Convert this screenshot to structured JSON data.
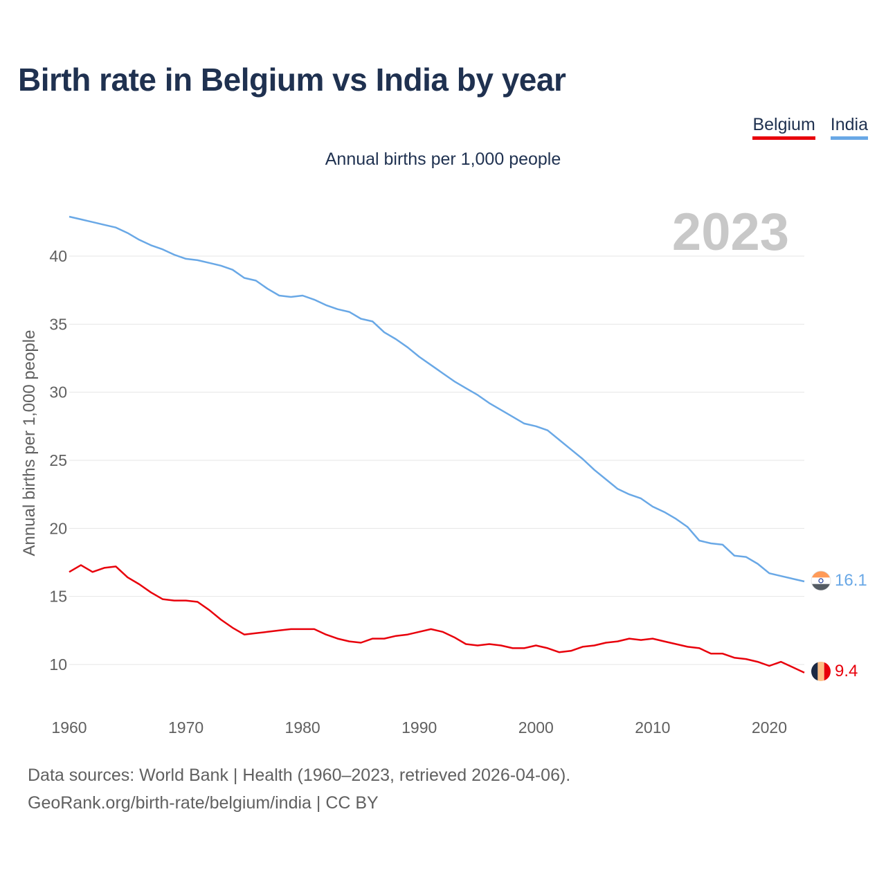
{
  "title": "Birth rate in Belgium vs India by year",
  "subtitle": "Annual births per 1,000 people",
  "legend": [
    {
      "label": "Belgium",
      "color": "#e8000b"
    },
    {
      "label": "India",
      "color": "#69a8e6"
    }
  ],
  "year_label": "2023",
  "footer": {
    "sources": "Data sources: World Bank | Health (1960–2023, retrieved 2026-04-06).",
    "credit": "GeoRank.org/birth-rate/belgium/india | CC BY"
  },
  "chart_data": {
    "type": "line",
    "title": "Birth rate in Belgium vs India by year",
    "xlabel": "",
    "ylabel": "Annual births per 1,000 people",
    "xlim": [
      1960,
      2023
    ],
    "ylim": [
      7.5,
      44
    ],
    "x_ticks": [
      1960,
      1970,
      1980,
      1990,
      2000,
      2010,
      2020
    ],
    "y_ticks": [
      10,
      15,
      20,
      25,
      30,
      35,
      40
    ],
    "grid": true,
    "x": [
      1960,
      1961,
      1962,
      1963,
      1964,
      1965,
      1966,
      1967,
      1968,
      1969,
      1970,
      1971,
      1972,
      1973,
      1974,
      1975,
      1976,
      1977,
      1978,
      1979,
      1980,
      1981,
      1982,
      1983,
      1984,
      1985,
      1986,
      1987,
      1988,
      1989,
      1990,
      1991,
      1992,
      1993,
      1994,
      1995,
      1996,
      1997,
      1998,
      1999,
      2000,
      2001,
      2002,
      2003,
      2004,
      2005,
      2006,
      2007,
      2008,
      2009,
      2010,
      2011,
      2012,
      2013,
      2014,
      2015,
      2016,
      2017,
      2018,
      2019,
      2020,
      2021,
      2022,
      2023
    ],
    "series": [
      {
        "name": "Belgium",
        "color": "#e8000b",
        "end_label": "9.4",
        "values": [
          16.8,
          17.3,
          16.8,
          17.1,
          17.2,
          16.4,
          15.9,
          15.3,
          14.8,
          14.7,
          14.7,
          14.6,
          14.0,
          13.3,
          12.7,
          12.2,
          12.3,
          12.4,
          12.5,
          12.6,
          12.6,
          12.6,
          12.2,
          11.9,
          11.7,
          11.6,
          11.9,
          11.9,
          12.1,
          12.2,
          12.4,
          12.6,
          12.4,
          12.0,
          11.5,
          11.4,
          11.5,
          11.4,
          11.2,
          11.2,
          11.4,
          11.2,
          10.9,
          11.0,
          11.3,
          11.4,
          11.6,
          11.7,
          11.9,
          11.8,
          11.9,
          11.7,
          11.5,
          11.3,
          11.2,
          10.8,
          10.8,
          10.5,
          10.4,
          10.2,
          9.9,
          10.2,
          9.8,
          9.4
        ]
      },
      {
        "name": "India",
        "color": "#69a8e6",
        "end_label": "16.1",
        "values": [
          42.9,
          42.7,
          42.5,
          42.3,
          42.1,
          41.7,
          41.2,
          40.8,
          40.5,
          40.1,
          39.8,
          39.7,
          39.5,
          39.3,
          39.0,
          38.4,
          38.2,
          37.6,
          37.1,
          37.0,
          37.1,
          36.8,
          36.4,
          36.1,
          35.9,
          35.4,
          35.2,
          34.4,
          33.9,
          33.3,
          32.6,
          32.0,
          31.4,
          30.8,
          30.3,
          29.8,
          29.2,
          28.7,
          28.2,
          27.7,
          27.5,
          27.2,
          26.5,
          25.8,
          25.1,
          24.3,
          23.6,
          22.9,
          22.5,
          22.2,
          21.6,
          21.2,
          20.7,
          20.1,
          19.1,
          18.9,
          18.8,
          18.0,
          17.9,
          17.4,
          16.7,
          16.5,
          16.3,
          16.1
        ]
      }
    ]
  }
}
